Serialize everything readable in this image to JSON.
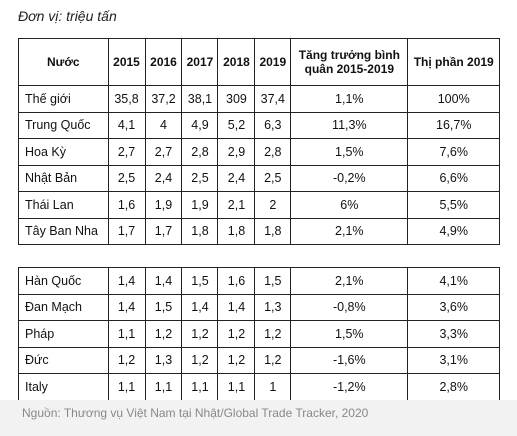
{
  "unit": "Đơn vị: triệu tấn",
  "table": {
    "header": [
      "Nước",
      "2015",
      "2016",
      "2017",
      "2018",
      "2019",
      "Tăng trưởng bình quân 2015-2019",
      "Thị phần 2019"
    ],
    "groups": [
      [
        [
          "Thế giới",
          "35,8",
          "37,2",
          "38,1",
          "309",
          "37,4",
          "1,1%",
          "100%"
        ],
        [
          "Trung Quốc",
          "4,1",
          "4",
          "4,9",
          "5,2",
          "6,3",
          "11,3%",
          "16,7%"
        ],
        [
          "Hoa Kỳ",
          "2,7",
          "2,7",
          "2,8",
          "2,9",
          "2,8",
          "1,5%",
          "7,6%"
        ],
        [
          "Nhật Bản",
          "2,5",
          "2,4",
          "2,5",
          "2,4",
          "2,5",
          "-0,2%",
          "6,6%"
        ],
        [
          "Thái Lan",
          "1,6",
          "1,9",
          "1,9",
          "2,1",
          "2",
          "6%",
          "5,5%"
        ],
        [
          "Tây Ban Nha",
          "1,7",
          "1,7",
          "1,8",
          "1,8",
          "1,8",
          "2,1%",
          "4,9%"
        ]
      ],
      [
        [
          "Hàn Quốc",
          "1,4",
          "1,4",
          "1,5",
          "1,6",
          "1,5",
          "2,1%",
          "4,1%"
        ],
        [
          "Đan Mạch",
          "1,4",
          "1,5",
          "1,4",
          "1,4",
          "1,3",
          "-0,8%",
          "3,6%"
        ],
        [
          "Pháp",
          "1,1",
          "1,2",
          "1,2",
          "1,2",
          "1,2",
          "1,5%",
          "3,3%"
        ],
        [
          "Đức",
          "1,2",
          "1,3",
          "1,2",
          "1,2",
          "1,2",
          "-1,6%",
          "3,1%"
        ],
        [
          "Italy",
          "1,1",
          "1,1",
          "1,1",
          "1,1",
          "1",
          "-1,2%",
          "2,8%"
        ]
      ]
    ]
  },
  "source": "Nguồn: Thương vụ Việt Nam tại Nhật/Global Trade Tracker, 2020"
}
